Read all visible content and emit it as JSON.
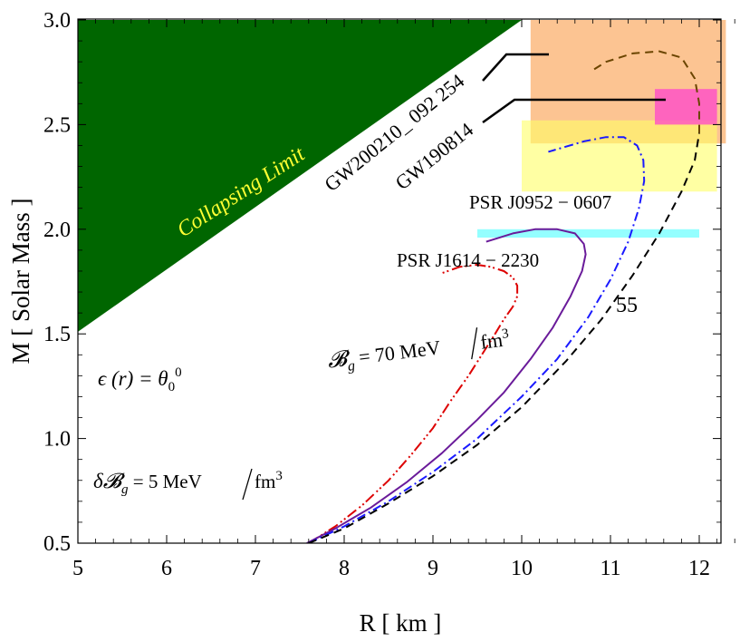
{
  "chart_data": {
    "type": "line",
    "xlabel": "R  [ km ]",
    "ylabel": "M  [ Solar  Mass ]",
    "xlim": [
      5,
      12.4
    ],
    "ylim": [
      0.5,
      3.0
    ],
    "x_ticks": [
      "5",
      "6",
      "7",
      "8",
      "9",
      "10",
      "11",
      "12"
    ],
    "y_ticks": [
      "0.5",
      "1.0",
      "1.5",
      "2.0",
      "2.5",
      "3.0"
    ],
    "x_tick_values": [
      5,
      6,
      7,
      8,
      9,
      10,
      11,
      12
    ],
    "y_tick_values": [
      0.5,
      1.0,
      1.5,
      2.0,
      2.5,
      3.0
    ],
    "grid": false,
    "collapsing_region": {
      "label": "Collapsing Limit",
      "color": "#006600",
      "label_color": "#ffff33",
      "polygon": [
        [
          5,
          3.0
        ],
        [
          10.0,
          3.0
        ],
        [
          5,
          1.51
        ]
      ]
    },
    "bands": [
      {
        "x": [
          10.1,
          12.3
        ],
        "y": [
          2.41,
          3.0
        ],
        "color": "#fbb06e",
        "opacity": 0.75
      },
      {
        "x": [
          10.0,
          12.2
        ],
        "y": [
          2.18,
          2.52
        ],
        "color": "#ffff66",
        "opacity": 0.6
      },
      {
        "x": [
          11.5,
          12.2
        ],
        "y": [
          2.5,
          2.67
        ],
        "color": "#ff44cc",
        "opacity": 0.75
      },
      {
        "x": [
          9.5,
          12.0
        ],
        "y": [
          1.96,
          2.0
        ],
        "color": "#66ffff",
        "opacity": 0.7
      }
    ],
    "series": [
      {
        "style": "dashdot-dense",
        "color": "#dd0000",
        "x": [
          7.6,
          7.9,
          8.2,
          8.5,
          8.75,
          9.0,
          9.2,
          9.4,
          9.55,
          9.7,
          9.8,
          9.9,
          9.95,
          9.95,
          9.9,
          9.8,
          9.65,
          9.5,
          9.3,
          9.1
        ],
        "y": [
          0.5,
          0.58,
          0.68,
          0.8,
          0.92,
          1.05,
          1.18,
          1.3,
          1.4,
          1.5,
          1.57,
          1.63,
          1.68,
          1.73,
          1.77,
          1.8,
          1.82,
          1.83,
          1.82,
          1.79
        ]
      },
      {
        "style": "solid",
        "color": "#6a1b9a",
        "x": [
          7.58,
          7.9,
          8.3,
          8.7,
          9.1,
          9.5,
          9.8,
          10.1,
          10.35,
          10.55,
          10.68,
          10.72,
          10.7,
          10.6,
          10.4,
          10.15,
          9.9,
          9.6
        ],
        "y": [
          0.5,
          0.57,
          0.67,
          0.79,
          0.93,
          1.09,
          1.22,
          1.38,
          1.53,
          1.68,
          1.8,
          1.88,
          1.93,
          1.98,
          2.0,
          2.0,
          1.98,
          1.94
        ]
      },
      {
        "style": "dashdot",
        "color": "#1a1aff",
        "x": [
          7.6,
          8.0,
          8.5,
          9.0,
          9.5,
          10.0,
          10.4,
          10.75,
          11.0,
          11.2,
          11.32,
          11.38,
          11.37,
          11.3,
          11.15,
          10.95,
          10.7,
          10.3
        ],
        "y": [
          0.5,
          0.58,
          0.7,
          0.84,
          1.0,
          1.2,
          1.38,
          1.58,
          1.76,
          1.94,
          2.1,
          2.23,
          2.33,
          2.4,
          2.44,
          2.44,
          2.42,
          2.37
        ]
      },
      {
        "style": "dashed",
        "color": "#000000",
        "x": [
          7.6,
          8.0,
          8.5,
          9.0,
          9.5,
          10.0,
          10.5,
          10.9,
          11.25,
          11.55,
          11.8,
          11.95,
          12.0
        ],
        "y": [
          0.5,
          0.57,
          0.69,
          0.82,
          0.97,
          1.15,
          1.37,
          1.57,
          1.78,
          1.98,
          2.18,
          2.33,
          2.46
        ]
      },
      {
        "style": "dashed",
        "color": "#6b4500",
        "x": [
          12.0,
          12.0,
          11.95,
          11.8,
          11.55,
          11.25,
          10.95,
          10.8
        ],
        "y": [
          2.46,
          2.6,
          2.72,
          2.82,
          2.85,
          2.84,
          2.8,
          2.76
        ]
      }
    ],
    "annotations": {
      "gw200210_label": "GW200210_ 092 254",
      "gw190814_label": "GW190814",
      "psr_j0952_label": "PSR J0952 − 0607",
      "psr_j1614_label": "PSR  J1614 − 2230",
      "bg70_prefix": "𝓑",
      "bg70_sub": "g",
      "bg70_text": " = 70 MeV",
      "bg70_unit": "fm",
      "bg70_exp": "3",
      "curve_55_label": "55",
      "epsilon_text": "ϵ (r) = θ",
      "epsilon_sub": "0",
      "epsilon_exp": "0",
      "delta_prefix": "δ𝓑",
      "delta_sub": "g",
      "delta_text": " = 5 MeV",
      "delta_unit": "fm",
      "delta_exp": "3"
    }
  }
}
